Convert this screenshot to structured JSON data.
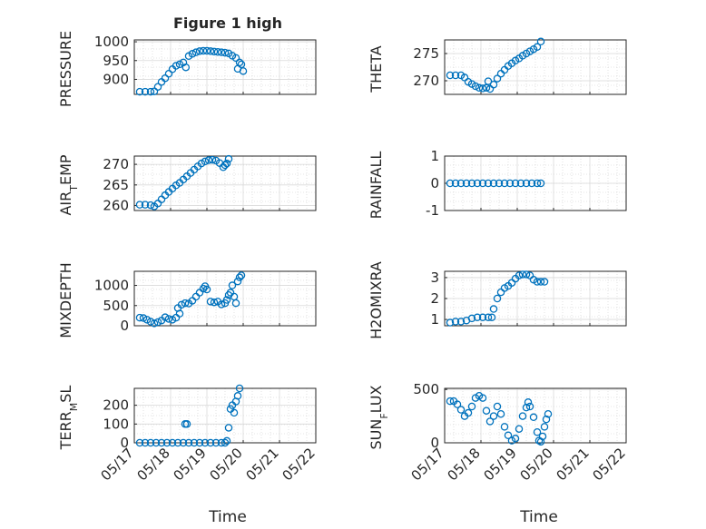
{
  "figure_title": "Figure 1 high",
  "xlabel": "Time",
  "x_ticks": [
    "05/17",
    "05/18",
    "05/19",
    "05/20",
    "05/21",
    "05/22"
  ],
  "colors": {
    "marker": "#0072bd",
    "axis": "#262626",
    "grid": "#d9d9d9",
    "minor_grid": "#cccccc"
  },
  "chart_data": [
    {
      "type": "scatter",
      "id": "pressure",
      "title": "Figure 1 high",
      "ylabel": "PRESSURE",
      "ylim": [
        860,
        1005
      ],
      "yticks": [
        900,
        950,
        1000
      ],
      "xlim": [
        0,
        5
      ],
      "x_unit": "days since 05/17",
      "grid": true,
      "points": [
        [
          0.15,
          867
        ],
        [
          0.3,
          867
        ],
        [
          0.45,
          867
        ],
        [
          0.55,
          868
        ],
        [
          0.65,
          880
        ],
        [
          0.75,
          893
        ],
        [
          0.85,
          903
        ],
        [
          0.95,
          915
        ],
        [
          1.05,
          927
        ],
        [
          1.15,
          936
        ],
        [
          1.25,
          940
        ],
        [
          1.35,
          945
        ],
        [
          1.42,
          932
        ],
        [
          1.5,
          962
        ],
        [
          1.6,
          968
        ],
        [
          1.7,
          972
        ],
        [
          1.8,
          975
        ],
        [
          1.9,
          976
        ],
        [
          2.0,
          976
        ],
        [
          2.1,
          975
        ],
        [
          2.2,
          974
        ],
        [
          2.3,
          973
        ],
        [
          2.4,
          972
        ],
        [
          2.5,
          971
        ],
        [
          2.6,
          969
        ],
        [
          2.7,
          963
        ],
        [
          2.8,
          957
        ],
        [
          2.85,
          928
        ],
        [
          2.9,
          945
        ],
        [
          2.95,
          940
        ],
        [
          3.0,
          922
        ]
      ]
    },
    {
      "type": "scatter",
      "id": "theta",
      "ylabel": "THETA",
      "ylim": [
        267.5,
        277.5
      ],
      "yticks": [
        270,
        275
      ],
      "xlim": [
        0,
        5
      ],
      "grid": true,
      "points": [
        [
          0.15,
          271
        ],
        [
          0.3,
          271
        ],
        [
          0.45,
          271
        ],
        [
          0.55,
          270.6
        ],
        [
          0.65,
          269.8
        ],
        [
          0.75,
          269.4
        ],
        [
          0.85,
          269
        ],
        [
          0.95,
          268.7
        ],
        [
          1.05,
          268.6
        ],
        [
          1.15,
          268.7
        ],
        [
          1.2,
          269.9
        ],
        [
          1.25,
          268.5
        ],
        [
          1.35,
          269.3
        ],
        [
          1.45,
          270.4
        ],
        [
          1.55,
          271.3
        ],
        [
          1.65,
          272
        ],
        [
          1.75,
          272.7
        ],
        [
          1.85,
          273.2
        ],
        [
          1.95,
          273.7
        ],
        [
          2.05,
          274.1
        ],
        [
          2.15,
          274.6
        ],
        [
          2.25,
          275
        ],
        [
          2.35,
          275.4
        ],
        [
          2.45,
          275.8
        ],
        [
          2.55,
          276.2
        ],
        [
          2.65,
          277.2
        ]
      ]
    },
    {
      "type": "scatter",
      "id": "air-temp",
      "ylabel": "AIR_TEMP",
      "ylim": [
        258.8,
        272
      ],
      "yticks": [
        260,
        265,
        270
      ],
      "xlim": [
        0,
        5
      ],
      "grid": true,
      "points": [
        [
          0.15,
          260.2
        ],
        [
          0.3,
          260.2
        ],
        [
          0.45,
          260.1
        ],
        [
          0.55,
          259.8
        ],
        [
          0.65,
          260.5
        ],
        [
          0.75,
          261.5
        ],
        [
          0.85,
          262.5
        ],
        [
          0.95,
          263.3
        ],
        [
          1.05,
          264.1
        ],
        [
          1.15,
          264.9
        ],
        [
          1.25,
          265.5
        ],
        [
          1.35,
          266.3
        ],
        [
          1.45,
          267.1
        ],
        [
          1.55,
          267.9
        ],
        [
          1.65,
          268.7
        ],
        [
          1.75,
          269.5
        ],
        [
          1.85,
          270.2
        ],
        [
          1.95,
          270.7
        ],
        [
          2.05,
          271.0
        ],
        [
          2.15,
          271.1
        ],
        [
          2.25,
          270.9
        ],
        [
          2.35,
          270.3
        ],
        [
          2.45,
          269.3
        ],
        [
          2.5,
          269.8
        ],
        [
          2.55,
          270.2
        ],
        [
          2.6,
          271.3
        ]
      ]
    },
    {
      "type": "scatter",
      "id": "rainfall",
      "ylabel": "RAINFALL",
      "ylim": [
        -1,
        1
      ],
      "yticks": [
        -1,
        0,
        1
      ],
      "xlim": [
        0,
        5
      ],
      "grid": true,
      "points": [
        [
          0.15,
          0
        ],
        [
          0.3,
          0
        ],
        [
          0.45,
          0
        ],
        [
          0.6,
          0
        ],
        [
          0.75,
          0
        ],
        [
          0.9,
          0
        ],
        [
          1.05,
          0
        ],
        [
          1.2,
          0
        ],
        [
          1.35,
          0
        ],
        [
          1.5,
          0
        ],
        [
          1.65,
          0
        ],
        [
          1.8,
          0
        ],
        [
          1.95,
          0
        ],
        [
          2.1,
          0
        ],
        [
          2.25,
          0
        ],
        [
          2.4,
          0
        ],
        [
          2.55,
          0
        ],
        [
          2.65,
          0
        ]
      ]
    },
    {
      "type": "scatter",
      "id": "mixdepth",
      "ylabel": "MIXDEPTH",
      "ylim": [
        0,
        1350
      ],
      "yticks": [
        0,
        500,
        1000
      ],
      "xlim": [
        0,
        5
      ],
      "grid": true,
      "points": [
        [
          0.15,
          200
        ],
        [
          0.25,
          190
        ],
        [
          0.35,
          150
        ],
        [
          0.45,
          100
        ],
        [
          0.55,
          60
        ],
        [
          0.65,
          90
        ],
        [
          0.75,
          130
        ],
        [
          0.85,
          210
        ],
        [
          0.95,
          170
        ],
        [
          1.05,
          150
        ],
        [
          1.15,
          200
        ],
        [
          1.2,
          440
        ],
        [
          1.25,
          300
        ],
        [
          1.3,
          520
        ],
        [
          1.4,
          560
        ],
        [
          1.5,
          550
        ],
        [
          1.6,
          620
        ],
        [
          1.7,
          720
        ],
        [
          1.8,
          820
        ],
        [
          1.9,
          920
        ],
        [
          1.95,
          980
        ],
        [
          2.0,
          900
        ],
        [
          2.1,
          600
        ],
        [
          2.2,
          580
        ],
        [
          2.3,
          600
        ],
        [
          2.4,
          530
        ],
        [
          2.5,
          560
        ],
        [
          2.55,
          640
        ],
        [
          2.6,
          760
        ],
        [
          2.65,
          820
        ],
        [
          2.7,
          1000
        ],
        [
          2.75,
          720
        ],
        [
          2.8,
          560
        ],
        [
          2.85,
          1100
        ],
        [
          2.9,
          1200
        ],
        [
          2.95,
          1250
        ]
      ]
    },
    {
      "type": "scatter",
      "id": "h2omixra",
      "ylabel": "H2OMIXRA",
      "ylim": [
        0.7,
        3.3
      ],
      "yticks": [
        1,
        2,
        3
      ],
      "xlim": [
        0,
        5
      ],
      "grid": true,
      "points": [
        [
          0.15,
          0.85
        ],
        [
          0.3,
          0.9
        ],
        [
          0.45,
          0.9
        ],
        [
          0.6,
          0.95
        ],
        [
          0.75,
          1.05
        ],
        [
          0.9,
          1.1
        ],
        [
          1.05,
          1.1
        ],
        [
          1.2,
          1.1
        ],
        [
          1.3,
          1.1
        ],
        [
          1.35,
          1.5
        ],
        [
          1.45,
          2.0
        ],
        [
          1.55,
          2.3
        ],
        [
          1.65,
          2.5
        ],
        [
          1.75,
          2.6
        ],
        [
          1.85,
          2.75
        ],
        [
          1.95,
          2.95
        ],
        [
          2.05,
          3.1
        ],
        [
          2.15,
          3.15
        ],
        [
          2.25,
          3.15
        ],
        [
          2.35,
          3.1
        ],
        [
          2.45,
          2.9
        ],
        [
          2.55,
          2.8
        ],
        [
          2.65,
          2.8
        ],
        [
          2.75,
          2.8
        ]
      ]
    },
    {
      "type": "scatter",
      "id": "terr-msl",
      "ylabel": "TERR_MSL",
      "ylim": [
        0,
        290
      ],
      "yticks": [
        0,
        100,
        200
      ],
      "xlim": [
        0,
        5
      ],
      "grid": true,
      "points": [
        [
          0.15,
          0
        ],
        [
          0.3,
          0
        ],
        [
          0.45,
          0
        ],
        [
          0.6,
          0
        ],
        [
          0.75,
          0
        ],
        [
          0.9,
          0
        ],
        [
          1.05,
          0
        ],
        [
          1.2,
          0
        ],
        [
          1.35,
          0
        ],
        [
          1.4,
          100
        ],
        [
          1.45,
          100
        ],
        [
          1.5,
          0
        ],
        [
          1.65,
          0
        ],
        [
          1.8,
          0
        ],
        [
          1.95,
          0
        ],
        [
          2.1,
          0
        ],
        [
          2.25,
          0
        ],
        [
          2.4,
          0
        ],
        [
          2.5,
          0
        ],
        [
          2.55,
          10
        ],
        [
          2.6,
          80
        ],
        [
          2.65,
          180
        ],
        [
          2.7,
          200
        ],
        [
          2.75,
          160
        ],
        [
          2.8,
          220
        ],
        [
          2.85,
          250
        ],
        [
          2.9,
          290
        ]
      ]
    },
    {
      "type": "scatter",
      "id": "sun-flux",
      "ylabel": "SUN_FLUX",
      "ylim": [
        0,
        510
      ],
      "yticks": [
        0,
        500
      ],
      "xlim": [
        0,
        5
      ],
      "grid": true,
      "points": [
        [
          0.15,
          390
        ],
        [
          0.25,
          390
        ],
        [
          0.35,
          360
        ],
        [
          0.45,
          310
        ],
        [
          0.55,
          250
        ],
        [
          0.65,
          280
        ],
        [
          0.75,
          340
        ],
        [
          0.85,
          420
        ],
        [
          0.95,
          440
        ],
        [
          1.05,
          420
        ],
        [
          1.15,
          300
        ],
        [
          1.25,
          200
        ],
        [
          1.35,
          250
        ],
        [
          1.45,
          340
        ],
        [
          1.55,
          270
        ],
        [
          1.65,
          150
        ],
        [
          1.75,
          70
        ],
        [
          1.85,
          20
        ],
        [
          1.95,
          40
        ],
        [
          2.05,
          130
        ],
        [
          2.15,
          250
        ],
        [
          2.25,
          330
        ],
        [
          2.3,
          380
        ],
        [
          2.35,
          340
        ],
        [
          2.45,
          240
        ],
        [
          2.55,
          100
        ],
        [
          2.6,
          20
        ],
        [
          2.65,
          10
        ],
        [
          2.7,
          60
        ],
        [
          2.75,
          150
        ],
        [
          2.8,
          220
        ],
        [
          2.85,
          270
        ]
      ]
    }
  ]
}
